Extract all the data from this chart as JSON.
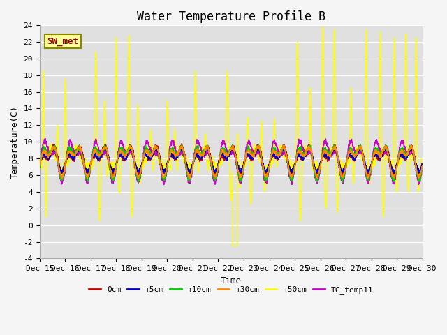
{
  "title": "Water Temperature Profile B",
  "xlabel": "Time",
  "ylabel": "Temperature(C)",
  "ylim": [
    -4,
    24
  ],
  "legend_labels": [
    "0cm",
    "+5cm",
    "+10cm",
    "+30cm",
    "+50cm",
    "TC_temp11"
  ],
  "legend_colors": [
    "#cc0000",
    "#0000cc",
    "#00cc00",
    "#ff8800",
    "#ffff00",
    "#cc00cc"
  ],
  "annotation_text": "SW_met",
  "annotation_fg": "#8b0000",
  "annotation_bg": "#ffff99",
  "annotation_edge": "#888800",
  "bg_color": "#e0e0e0",
  "fig_bg": "#f5f5f5",
  "grid_color": "#ffffff",
  "title_fontsize": 12,
  "label_fontsize": 9,
  "tick_fontsize": 8
}
